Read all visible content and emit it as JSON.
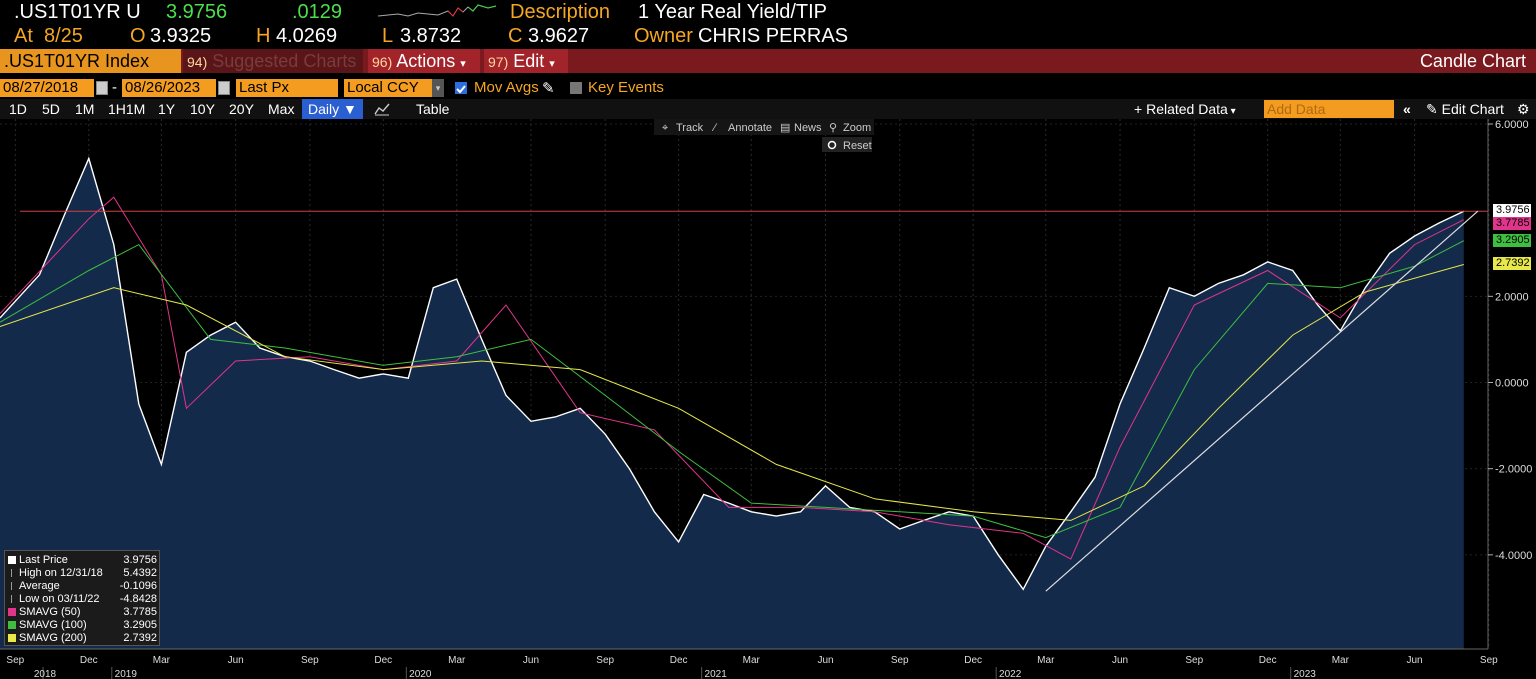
{
  "header": {
    "ticker": ".US1T01YR U",
    "last": "3.9756",
    "change": ".0129",
    "description_label": "Description",
    "description": "1 Year Real Yield/TIP",
    "at_label": "At",
    "at_date": "8/25",
    "open_label": "O",
    "open": "3.9325",
    "high_label": "H",
    "high": "4.0269",
    "low_label": "L",
    "low": "3.8732",
    "close_label": "C",
    "close": "3.9627",
    "owner_label": "Owner",
    "owner": "CHRIS PERRAS"
  },
  "menubar": {
    "security": ".US1T01YR Index",
    "suggested_num": "94)",
    "suggested": "Suggested Charts",
    "actions_num": "96)",
    "actions": "Actions",
    "edit_num": "97)",
    "edit": "Edit",
    "title": "Candle Chart"
  },
  "controls": {
    "start_date": "08/27/2018",
    "date_sep": "-",
    "end_date": "08/26/2023",
    "field": "Last Px",
    "currency": "Local CCY",
    "mov_avgs": "Mov Avgs",
    "key_events": "Key Events"
  },
  "range": {
    "buttons": [
      "1D",
      "5D",
      "1M",
      "1H1M",
      "1Y",
      "10Y",
      "20Y",
      "Max"
    ],
    "period": "Daily",
    "table": "Table",
    "related_data": "Related Data",
    "add_data_placeholder": "Add Data",
    "edit_chart": "Edit Chart"
  },
  "chart_tools": {
    "track": "Track",
    "annotate": "Annotate",
    "news": "News",
    "zoom": "Zoom",
    "reset": "Reset"
  },
  "legend": [
    {
      "name": "Last Price",
      "value": "3.9756",
      "color": "#ffffff"
    },
    {
      "name": "High on 12/31/18",
      "value": "5.4392",
      "color": ""
    },
    {
      "name": "Average",
      "value": "-0.1096",
      "color": ""
    },
    {
      "name": "Low on 03/11/22",
      "value": "-4.8428",
      "color": ""
    },
    {
      "name": "SMAVG (50)",
      "value": "3.7785",
      "color": "#e0358a"
    },
    {
      "name": "SMAVG (100)",
      "value": "3.2905",
      "color": "#3fbf3f"
    },
    {
      "name": "SMAVG (200)",
      "value": "2.7392",
      "color": "#e8e84a"
    }
  ],
  "price_tags": [
    {
      "value": "3.9756",
      "color": "#ffffff"
    },
    {
      "value": "3.7785",
      "color": "#e0358a"
    },
    {
      "value": "3.2905",
      "color": "#3fbf3f"
    },
    {
      "value": "2.7392",
      "color": "#e8e84a"
    }
  ],
  "chart_data": {
    "type": "area",
    "y_ticks": [
      "6.0000",
      "2.0000",
      "0.0000",
      "-2.0000",
      "-4.0000"
    ],
    "ylim": [
      -6.0,
      6.0
    ],
    "x_month_labels": [
      "Sep",
      "Dec",
      "Mar",
      "Jun",
      "Sep",
      "Dec",
      "Mar",
      "Jun",
      "Sep",
      "Dec",
      "Mar",
      "Jun",
      "Sep",
      "Dec",
      "Mar",
      "Jun",
      "Sep",
      "Dec",
      "Mar",
      "Jun",
      "Sep"
    ],
    "x_year_labels": [
      "2018",
      "2019",
      "2020",
      "2021",
      "2022",
      "2023"
    ],
    "reference_line": 3.9756,
    "series": [
      {
        "name": "Last Price",
        "color": "#ffffff",
        "fill": "#142a4a",
        "x": [
          "2018-09",
          "2018-10",
          "2018-11",
          "2018-12",
          "2019-01",
          "2019-02",
          "2019-03",
          "2019-04",
          "2019-05",
          "2019-06",
          "2019-07",
          "2019-08",
          "2019-09",
          "2019-10",
          "2019-11",
          "2019-12",
          "2020-01",
          "2020-02",
          "2020-03",
          "2020-04",
          "2020-05",
          "2020-06",
          "2020-07",
          "2020-08",
          "2020-09",
          "2020-10",
          "2020-11",
          "2020-12",
          "2021-01",
          "2021-02",
          "2021-03",
          "2021-04",
          "2021-05",
          "2021-06",
          "2021-07",
          "2021-08",
          "2021-09",
          "2021-10",
          "2021-11",
          "2021-12",
          "2022-01",
          "2022-02",
          "2022-03",
          "2022-04",
          "2022-05",
          "2022-06",
          "2022-07",
          "2022-08",
          "2022-09",
          "2022-10",
          "2022-11",
          "2022-12",
          "2023-01",
          "2023-02",
          "2023-03",
          "2023-04",
          "2023-05",
          "2023-06",
          "2023-07",
          "2023-08"
        ],
        "values": [
          1.5,
          2.5,
          3.9,
          5.2,
          3.2,
          -0.5,
          -1.9,
          0.7,
          1.1,
          1.4,
          0.8,
          0.6,
          0.5,
          0.3,
          0.1,
          0.2,
          0.1,
          2.2,
          2.4,
          1.0,
          -0.3,
          -0.9,
          -0.8,
          -0.6,
          -1.2,
          -2.0,
          -3.0,
          -3.7,
          -2.6,
          -2.8,
          -3.0,
          -3.1,
          -3.0,
          -2.4,
          -2.9,
          -3.0,
          -3.4,
          -3.2,
          -3.0,
          -3.1,
          -4.0,
          -4.8,
          -3.8,
          -3.0,
          -2.2,
          -0.5,
          0.8,
          2.2,
          2.0,
          2.3,
          2.5,
          2.8,
          2.6,
          1.8,
          1.2,
          2.2,
          3.0,
          3.4,
          3.7,
          3.9756
        ]
      },
      {
        "name": "SMAVG (50)",
        "color": "#e0358a",
        "x": [
          "2018-09",
          "2018-12",
          "2019-01",
          "2019-03",
          "2019-04",
          "2019-06",
          "2019-09",
          "2019-12",
          "2020-03",
          "2020-05",
          "2020-08",
          "2020-11",
          "2021-02",
          "2021-05",
          "2021-08",
          "2021-11",
          "2022-02",
          "2022-04",
          "2022-06",
          "2022-09",
          "2022-12",
          "2023-03",
          "2023-06",
          "2023-08"
        ],
        "values": [
          1.6,
          3.8,
          4.3,
          2.5,
          -0.6,
          0.5,
          0.6,
          0.3,
          0.5,
          1.8,
          -0.7,
          -1.1,
          -2.9,
          -2.9,
          -3.0,
          -3.3,
          -3.5,
          -4.1,
          -1.5,
          1.8,
          2.6,
          1.5,
          3.2,
          3.7785
        ]
      },
      {
        "name": "SMAVG (100)",
        "color": "#3fbf3f",
        "x": [
          "2018-09",
          "2018-12",
          "2019-02",
          "2019-05",
          "2019-08",
          "2019-12",
          "2020-03",
          "2020-06",
          "2020-09",
          "2020-12",
          "2021-03",
          "2021-06",
          "2021-09",
          "2021-12",
          "2022-03",
          "2022-06",
          "2022-09",
          "2022-12",
          "2023-03",
          "2023-06",
          "2023-08"
        ],
        "values": [
          1.4,
          2.6,
          3.2,
          1.0,
          0.8,
          0.4,
          0.6,
          1.0,
          -0.3,
          -1.6,
          -2.8,
          -2.9,
          -3.0,
          -3.1,
          -3.6,
          -2.9,
          0.3,
          2.3,
          2.2,
          2.7,
          3.2905
        ]
      },
      {
        "name": "SMAVG (200)",
        "color": "#e8e84a",
        "x": [
          "2018-09",
          "2019-01",
          "2019-04",
          "2019-08",
          "2019-12",
          "2020-04",
          "2020-08",
          "2020-12",
          "2021-04",
          "2021-08",
          "2021-12",
          "2022-04",
          "2022-07",
          "2022-10",
          "2023-01",
          "2023-04",
          "2023-08"
        ],
        "values": [
          1.3,
          2.2,
          1.8,
          0.6,
          0.3,
          0.5,
          0.3,
          -0.6,
          -1.9,
          -2.7,
          -3.0,
          -3.2,
          -2.4,
          -0.6,
          1.1,
          2.1,
          2.7392
        ]
      }
    ]
  }
}
